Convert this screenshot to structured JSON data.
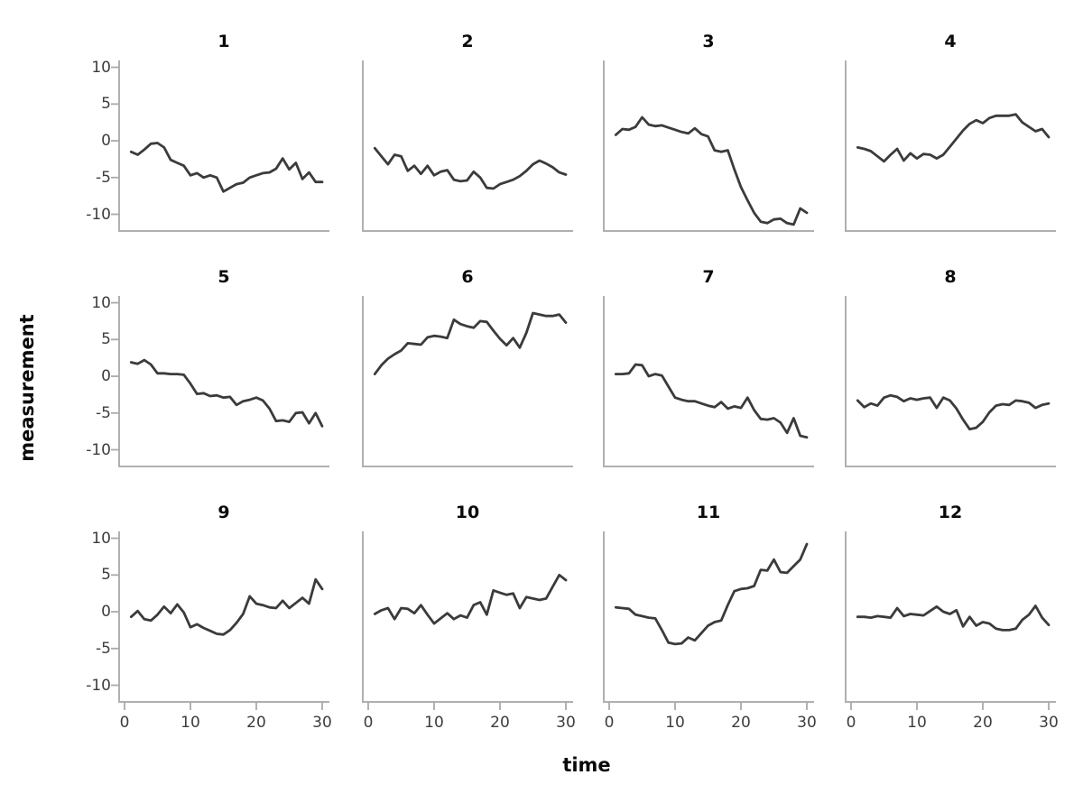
{
  "figure": {
    "xlabel": "time",
    "ylabel": "measurement",
    "line_color": "#3b3b3b",
    "spine_color": "#b0b0b0",
    "tick_mark_color": "#aaaaaa",
    "tick_label_color": "#3d3d3d",
    "title_color": "#0a0a0a",
    "background_color": "#ffffff"
  },
  "chart_data": {
    "type": "line",
    "layout": "facet_grid_3_rows_x_4_cols",
    "title": "",
    "xlabel": "time",
    "ylabel": "measurement",
    "xticks": [
      0,
      10,
      20,
      30
    ],
    "yticks": [
      10,
      5,
      0,
      -5,
      -10
    ],
    "xlim": [
      -1,
      31.2
    ],
    "ylim": [
      -12.4,
      10.9
    ],
    "grid": false,
    "legend": "none",
    "x": [
      1,
      2,
      3,
      4,
      5,
      6,
      7,
      8,
      9,
      10,
      11,
      12,
      13,
      14,
      15,
      16,
      17,
      18,
      19,
      20,
      21,
      22,
      23,
      24,
      25,
      26,
      27,
      28,
      29,
      30
    ],
    "series": [
      {
        "name": "1",
        "values": [
          -1.5,
          -1.9,
          -1.2,
          -0.4,
          -0.3,
          -0.9,
          -2.6,
          -3.0,
          -3.4,
          -4.7,
          -4.4,
          -5.0,
          -4.7,
          -5.0,
          -6.9,
          -6.4,
          -5.9,
          -5.7,
          -5.0,
          -4.7,
          -4.4,
          -4.3,
          -3.8,
          -2.4,
          -3.9,
          -3.0,
          -5.2,
          -4.3,
          -5.6,
          -5.6
        ]
      },
      {
        "name": "2",
        "values": [
          -1.0,
          -2.1,
          -3.2,
          -1.9,
          -2.1,
          -4.1,
          -3.4,
          -4.5,
          -3.4,
          -4.7,
          -4.2,
          -4.0,
          -5.3,
          -5.5,
          -5.4,
          -4.2,
          -5.0,
          -6.4,
          -6.5,
          -5.9,
          -5.6,
          -5.3,
          -4.8,
          -4.1,
          -3.2,
          -2.7,
          -3.1,
          -3.6,
          -4.3,
          -4.6
        ]
      },
      {
        "name": "3",
        "values": [
          0.8,
          1.6,
          1.5,
          1.9,
          3.2,
          2.2,
          2.0,
          2.1,
          1.8,
          1.5,
          1.2,
          1.0,
          1.7,
          0.9,
          0.6,
          -1.3,
          -1.5,
          -1.3,
          -3.9,
          -6.3,
          -8.1,
          -9.8,
          -11.0,
          -11.2,
          -10.7,
          -10.6,
          -11.2,
          -11.4,
          -9.2,
          -9.8
        ]
      },
      {
        "name": "4",
        "values": [
          -0.9,
          -1.1,
          -1.4,
          -2.1,
          -2.8,
          -1.9,
          -1.1,
          -2.7,
          -1.7,
          -2.4,
          -1.8,
          -1.9,
          -2.4,
          -1.9,
          -0.8,
          0.3,
          1.4,
          2.3,
          2.8,
          2.4,
          3.1,
          3.4,
          3.4,
          3.4,
          3.6,
          2.5,
          1.9,
          1.3,
          1.6,
          0.5
        ]
      },
      {
        "name": "5",
        "values": [
          1.9,
          1.7,
          2.2,
          1.6,
          0.4,
          0.4,
          0.3,
          0.3,
          0.2,
          -1.0,
          -2.4,
          -2.3,
          -2.7,
          -2.6,
          -2.9,
          -2.8,
          -3.9,
          -3.4,
          -3.2,
          -2.9,
          -3.3,
          -4.4,
          -6.1,
          -6.0,
          -6.2,
          -5.0,
          -4.9,
          -6.4,
          -5.0,
          -6.8
        ]
      },
      {
        "name": "6",
        "values": [
          0.3,
          1.5,
          2.4,
          3.0,
          3.5,
          4.5,
          4.4,
          4.3,
          5.3,
          5.5,
          5.4,
          5.2,
          7.7,
          7.1,
          6.8,
          6.6,
          7.5,
          7.4,
          6.2,
          5.1,
          4.2,
          5.2,
          3.9,
          5.9,
          8.6,
          8.4,
          8.2,
          8.2,
          8.4,
          7.3
        ]
      },
      {
        "name": "7",
        "values": [
          0.3,
          0.3,
          0.4,
          1.6,
          1.5,
          0.0,
          0.3,
          0.1,
          -1.4,
          -2.9,
          -3.2,
          -3.4,
          -3.4,
          -3.7,
          -4.0,
          -4.2,
          -3.5,
          -4.4,
          -4.1,
          -4.3,
          -2.9,
          -4.6,
          -5.8,
          -5.9,
          -5.7,
          -6.3,
          -7.7,
          -5.7,
          -8.1,
          -8.3
        ]
      },
      {
        "name": "8",
        "values": [
          -3.3,
          -4.2,
          -3.7,
          -4.0,
          -2.9,
          -2.6,
          -2.8,
          -3.4,
          -3.0,
          -3.2,
          -3.0,
          -2.9,
          -4.3,
          -2.9,
          -3.3,
          -4.4,
          -5.9,
          -7.2,
          -7.0,
          -6.2,
          -4.9,
          -4.0,
          -3.8,
          -3.9,
          -3.3,
          -3.4,
          -3.6,
          -4.3,
          -3.9,
          -3.7
        ]
      },
      {
        "name": "9",
        "values": [
          -0.7,
          0.1,
          -1.0,
          -1.2,
          -0.4,
          0.7,
          -0.2,
          1.0,
          -0.1,
          -2.1,
          -1.7,
          -2.2,
          -2.6,
          -3.0,
          -3.1,
          -2.5,
          -1.5,
          -0.3,
          2.1,
          1.1,
          0.9,
          0.6,
          0.5,
          1.5,
          0.5,
          1.2,
          1.9,
          1.1,
          4.4,
          3.1
        ]
      },
      {
        "name": "10",
        "values": [
          -0.3,
          0.2,
          0.5,
          -1.0,
          0.5,
          0.4,
          -0.2,
          0.9,
          -0.4,
          -1.6,
          -0.9,
          -0.2,
          -1.0,
          -0.5,
          -0.8,
          0.9,
          1.3,
          -0.4,
          2.9,
          2.6,
          2.3,
          2.5,
          0.5,
          2.0,
          1.8,
          1.6,
          1.8,
          3.4,
          5.0,
          4.3
        ]
      },
      {
        "name": "11",
        "values": [
          0.6,
          0.5,
          0.4,
          -0.4,
          -0.6,
          -0.8,
          -0.9,
          -2.5,
          -4.2,
          -4.4,
          -4.3,
          -3.5,
          -3.9,
          -2.9,
          -1.9,
          -1.4,
          -1.2,
          0.9,
          2.8,
          3.1,
          3.2,
          3.5,
          5.7,
          5.6,
          7.1,
          5.4,
          5.3,
          6.2,
          7.1,
          9.2
        ]
      },
      {
        "name": "12",
        "values": [
          -0.7,
          -0.7,
          -0.8,
          -0.6,
          -0.7,
          -0.8,
          0.5,
          -0.6,
          -0.3,
          -0.4,
          -0.5,
          0.1,
          0.7,
          0.0,
          -0.3,
          0.2,
          -2.0,
          -0.7,
          -1.9,
          -1.4,
          -1.6,
          -2.3,
          -2.5,
          -2.5,
          -2.3,
          -1.1,
          -0.4,
          0.8,
          -0.8,
          -1.8
        ]
      }
    ]
  }
}
